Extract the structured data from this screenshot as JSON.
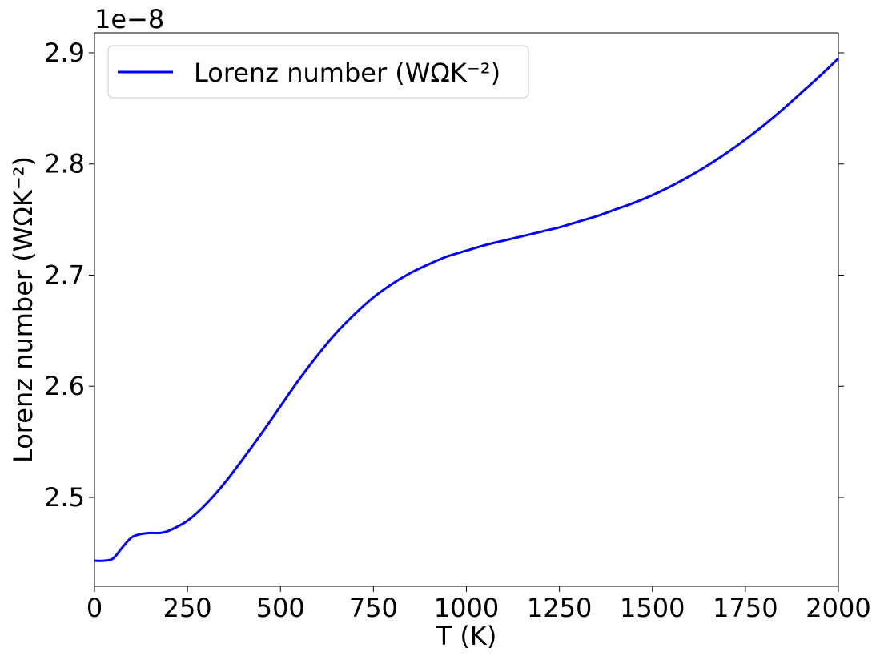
{
  "chart_data": {
    "type": "line",
    "title": "",
    "xlabel": "T (K)",
    "ylabel": "Lorenz number (WΩK⁻²)",
    "y_offset_text": "1e−8",
    "xlim": [
      0,
      2000
    ],
    "ylim": [
      2.42,
      2.918
    ],
    "y_scale_multiplier": 1e-08,
    "xticks": [
      0,
      250,
      500,
      750,
      1000,
      1250,
      1500,
      1750,
      2000
    ],
    "xtick_labels": [
      "0",
      "250",
      "500",
      "750",
      "1000",
      "1250",
      "1500",
      "1750",
      "2000"
    ],
    "yticks": [
      2.5,
      2.6,
      2.7,
      2.8,
      2.9
    ],
    "ytick_labels": [
      "2.5",
      "2.6",
      "2.7",
      "2.8",
      "2.9"
    ],
    "grid": false,
    "legend_position": "top-left",
    "series": [
      {
        "name": "Lorenz number (WΩK⁻²)",
        "color": "#0000ff",
        "x": [
          0,
          25,
          50,
          75,
          100,
          125,
          150,
          175,
          200,
          250,
          300,
          350,
          400,
          450,
          500,
          550,
          600,
          650,
          700,
          750,
          800,
          850,
          900,
          950,
          1000,
          1050,
          1100,
          1150,
          1200,
          1250,
          1300,
          1350,
          1400,
          1450,
          1500,
          1550,
          1600,
          1650,
          1700,
          1750,
          1800,
          1850,
          1900,
          1950,
          2000
        ],
        "y": [
          2.443,
          2.443,
          2.445,
          2.455,
          2.464,
          2.467,
          2.468,
          2.468,
          2.47,
          2.479,
          2.494,
          2.513,
          2.535,
          2.558,
          2.582,
          2.606,
          2.628,
          2.648,
          2.665,
          2.68,
          2.692,
          2.702,
          2.71,
          2.717,
          2.722,
          2.727,
          2.731,
          2.735,
          2.739,
          2.743,
          2.748,
          2.753,
          2.759,
          2.765,
          2.772,
          2.78,
          2.789,
          2.799,
          2.81,
          2.822,
          2.835,
          2.849,
          2.864,
          2.879,
          2.895
        ]
      }
    ]
  }
}
